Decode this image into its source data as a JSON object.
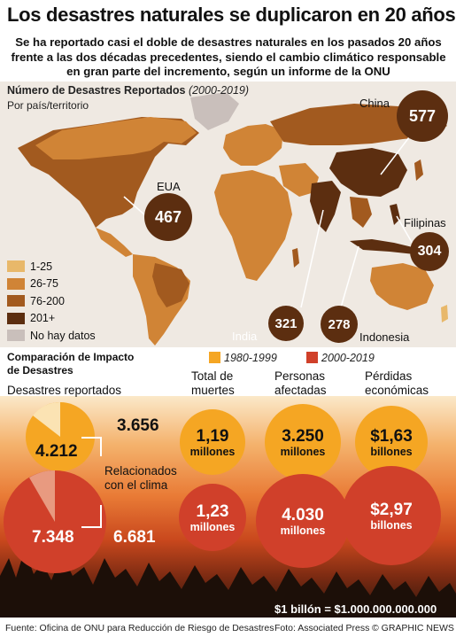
{
  "title": "Los desastres naturales se duplicaron en 20 años",
  "subtitle": "Se ha reportado casi el doble de desastres naturales en los pasados 20 años frente a las dos décadas precedentes, siendo el cambio climático responsable en gran parte del incremento, según un informe de la ONU",
  "map": {
    "heading": "Número de Desastres Reportados",
    "heading_period": "(2000-2019)",
    "subheading": "Por país/territorio",
    "highlights": [
      {
        "country": "China",
        "value": "577"
      },
      {
        "country": "EUA",
        "value": "467"
      },
      {
        "country": "Filipinas",
        "value": "304"
      },
      {
        "country": "India",
        "value": "321"
      },
      {
        "country": "Indonesia",
        "value": "278"
      }
    ],
    "legend": [
      {
        "label": "1-25",
        "color": "#e8b86a"
      },
      {
        "label": "26-75",
        "color": "#d08436"
      },
      {
        "label": "76-200",
        "color": "#a25a1f"
      },
      {
        "label": "201+",
        "color": "#5c2e10"
      },
      {
        "label": "No hay datos",
        "color": "#c9bfbb"
      }
    ]
  },
  "comparison": {
    "heading_line1": "Comparación de Impacto",
    "heading_line2": "de Desastres",
    "period_old": "1980-1999",
    "period_new": "2000-2019",
    "color_old": "#f5a623",
    "color_new": "#d0402a",
    "disasters": {
      "label": "Desastres reportados",
      "old": "4.212",
      "new": "7.348",
      "climate_old": "3.656",
      "climate_new": "6.681",
      "climate_label": "Relacionados con el clima"
    },
    "columns": [
      {
        "header": "Total de muertes",
        "old_value": "1,19",
        "old_unit": "millones",
        "new_value": "1,23",
        "new_unit": "millones"
      },
      {
        "header": "Personas afectadas",
        "old_value": "3.250",
        "old_unit": "millones",
        "new_value": "4.030",
        "new_unit": "millones"
      },
      {
        "header": "Pérdidas económicas",
        "old_value": "$1,63",
        "old_unit": "billones",
        "new_value": "$2,97",
        "new_unit": "billones"
      }
    ],
    "note": "$1 billón = $1.000.000.000.000"
  },
  "footer": {
    "source": "Fuente: Oficina de ONU para Reducción de Riesgo de Desastres",
    "photo": "Foto: Associated Press",
    "brand": "© GRAPHIC NEWS"
  },
  "chart_data": [
    {
      "type": "bar",
      "title": "Número de Desastres Reportados (2000-2019)",
      "categories": [
        "China",
        "EUA",
        "India",
        "Filipinas",
        "Indonesia"
      ],
      "values": [
        577,
        467,
        321,
        304,
        278
      ]
    },
    {
      "type": "bar",
      "title": "Comparación de Impacto de Desastres",
      "categories": [
        "Desastres reportados",
        "Relacionados con el clima",
        "Total de muertes (millones)",
        "Personas afectadas (millones)",
        "Pérdidas económicas (billones $)"
      ],
      "series": [
        {
          "name": "1980-1999",
          "values": [
            4212,
            3656,
            1.19,
            3250,
            1.63
          ]
        },
        {
          "name": "2000-2019",
          "values": [
            7348,
            6681,
            1.23,
            4030,
            2.97
          ]
        }
      ]
    }
  ]
}
